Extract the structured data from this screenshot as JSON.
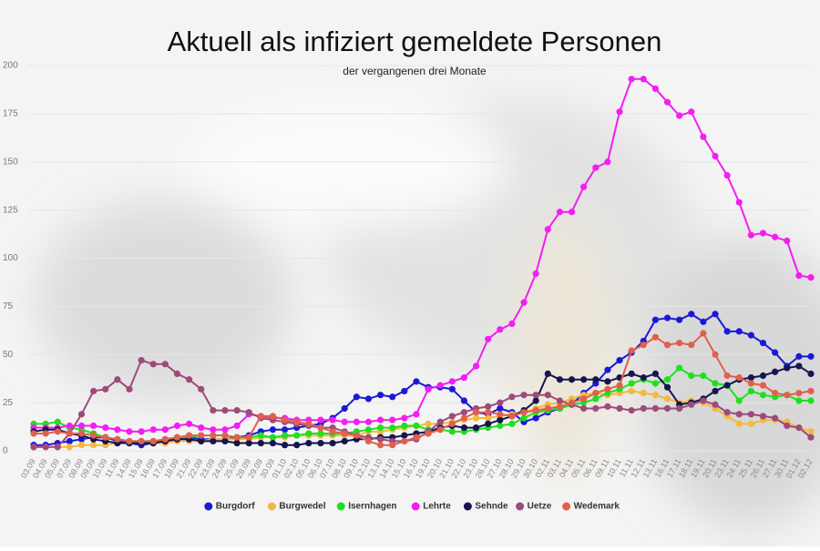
{
  "chart_data": {
    "type": "line",
    "title": "Aktuell als infiziert gemeldete Personen",
    "subtitle": "der vergangenen drei Monate",
    "categories": [
      "03.09",
      "04.09",
      "05.09",
      "07.09",
      "08.09",
      "09.09",
      "10.09",
      "11.09",
      "14.09",
      "15.09",
      "16.09",
      "17.09",
      "18.09",
      "21.09",
      "22.09",
      "23.09",
      "24.09",
      "25.09",
      "28.09",
      "29.09",
      "30.09",
      "01.10",
      "02.10",
      "05.10",
      "06.10",
      "07.10",
      "08.10",
      "09.10",
      "12.10",
      "13.10",
      "14.10",
      "15.10",
      "16.10",
      "19.10",
      "20.10",
      "21.10",
      "22.10",
      "23.10",
      "26.10",
      "27.10",
      "28.10",
      "29.10",
      "30.10",
      "02.11",
      "03.11",
      "04.11",
      "05.11",
      "06.11",
      "09.11",
      "10.11",
      "11.11",
      "12.11",
      "13.11",
      "16.11",
      "17.11",
      "18.11",
      "19.11",
      "20.11",
      "23.11",
      "24.11",
      "25.11",
      "26.11",
      "27.11",
      "30.11",
      "01.12",
      "02.12"
    ],
    "series": [
      {
        "name": "Burgdorf",
        "color": "#1a1ad6",
        "values": [
          3,
          3,
          4,
          5,
          6,
          7,
          7,
          5,
          4,
          3,
          4,
          5,
          6,
          7,
          6,
          6,
          6,
          7,
          8,
          10,
          11,
          11,
          12,
          13,
          14,
          17,
          22,
          28,
          27,
          29,
          28,
          31,
          36,
          33,
          33,
          32,
          26,
          20,
          19,
          22,
          20,
          15,
          17,
          20,
          22,
          24,
          30,
          35,
          42,
          47,
          51,
          57,
          68,
          69,
          68,
          71,
          67,
          71,
          62,
          62,
          60,
          56,
          51,
          44,
          49,
          49
        ]
      },
      {
        "name": "Burgwedel",
        "color": "#f4b840",
        "values": [
          2,
          2,
          2,
          2,
          3,
          3,
          3,
          4,
          4,
          4,
          4,
          4,
          5,
          5,
          5,
          6,
          6,
          6,
          6,
          7,
          7,
          7,
          8,
          8,
          8,
          8,
          8,
          8,
          10,
          10,
          11,
          12,
          13,
          14,
          14,
          15,
          16,
          17,
          17,
          18,
          19,
          20,
          22,
          24,
          25,
          27,
          29,
          30,
          29,
          30,
          31,
          30,
          29,
          27,
          25,
          26,
          25,
          22,
          18,
          14,
          14,
          16,
          16,
          15,
          12,
          10
        ]
      },
      {
        "name": "Isernhagen",
        "color": "#1ee01e",
        "values": [
          14,
          14,
          15,
          12,
          11,
          9,
          7,
          6,
          5,
          5,
          5,
          6,
          7,
          7,
          8,
          8,
          8,
          7,
          7,
          8,
          7,
          8,
          8,
          9,
          9,
          9,
          9,
          10,
          11,
          12,
          12,
          13,
          13,
          11,
          11,
          10,
          10,
          11,
          12,
          13,
          14,
          17,
          20,
          21,
          22,
          24,
          25,
          27,
          30,
          32,
          35,
          37,
          35,
          37,
          43,
          39,
          39,
          35,
          34,
          26,
          31,
          29,
          28,
          29,
          26,
          26
        ]
      },
      {
        "name": "Lehrte",
        "color": "#f21ef2",
        "values": [
          12,
          12,
          12,
          13,
          13,
          13,
          12,
          11,
          10,
          10,
          11,
          11,
          13,
          14,
          12,
          11,
          11,
          13,
          19,
          18,
          17,
          17,
          16,
          16,
          16,
          16,
          15,
          15,
          15,
          16,
          16,
          17,
          19,
          32,
          34,
          36,
          38,
          44,
          58,
          63,
          66,
          77,
          92,
          115,
          124,
          124,
          137,
          147,
          150,
          176,
          193,
          193,
          188,
          181,
          174,
          176,
          163,
          153,
          143,
          129,
          112,
          113,
          111,
          109,
          91,
          90
        ]
      },
      {
        "name": "Sehnde",
        "color": "#15154f",
        "values": [
          10,
          11,
          11,
          9,
          8,
          6,
          5,
          4,
          4,
          4,
          4,
          5,
          6,
          6,
          5,
          5,
          5,
          4,
          4,
          4,
          4,
          3,
          3,
          4,
          4,
          4,
          5,
          6,
          6,
          7,
          7,
          8,
          9,
          10,
          12,
          13,
          12,
          12,
          14,
          16,
          18,
          21,
          26,
          40,
          37,
          37,
          37,
          37,
          36,
          38,
          40,
          38,
          40,
          33,
          24,
          25,
          27,
          31,
          34,
          37,
          38,
          39,
          41,
          43,
          44,
          40
        ]
      },
      {
        "name": "Uetze",
        "color": "#9e4a7c",
        "values": [
          2,
          2,
          2,
          9,
          19,
          31,
          32,
          37,
          32,
          47,
          45,
          45,
          40,
          37,
          32,
          21,
          21,
          21,
          20,
          17,
          16,
          15,
          14,
          13,
          12,
          12,
          10,
          8,
          7,
          6,
          5,
          5,
          6,
          10,
          15,
          18,
          20,
          22,
          23,
          25,
          28,
          29,
          29,
          29,
          26,
          24,
          22,
          22,
          23,
          22,
          21,
          22,
          22,
          22,
          22,
          24,
          26,
          24,
          20,
          19,
          19,
          18,
          17,
          13,
          12,
          7
        ]
      },
      {
        "name": "Wedemark",
        "color": "#e0604e",
        "values": [
          9,
          9,
          10,
          9,
          9,
          8,
          7,
          6,
          5,
          5,
          5,
          6,
          7,
          8,
          8,
          8,
          8,
          7,
          7,
          18,
          18,
          16,
          15,
          14,
          12,
          10,
          9,
          8,
          5,
          3,
          3,
          5,
          7,
          9,
          11,
          14,
          17,
          20,
          20,
          19,
          18,
          20,
          21,
          22,
          23,
          25,
          27,
          30,
          32,
          34,
          52,
          55,
          59,
          55,
          56,
          55,
          61,
          50,
          39,
          38,
          35,
          34,
          30,
          29,
          30,
          31
        ]
      }
    ],
    "ylim": [
      0,
      200
    ],
    "yticks": [
      0,
      25,
      50,
      75,
      100,
      125,
      150,
      175,
      200
    ],
    "grid": true,
    "legend": "bottom"
  }
}
